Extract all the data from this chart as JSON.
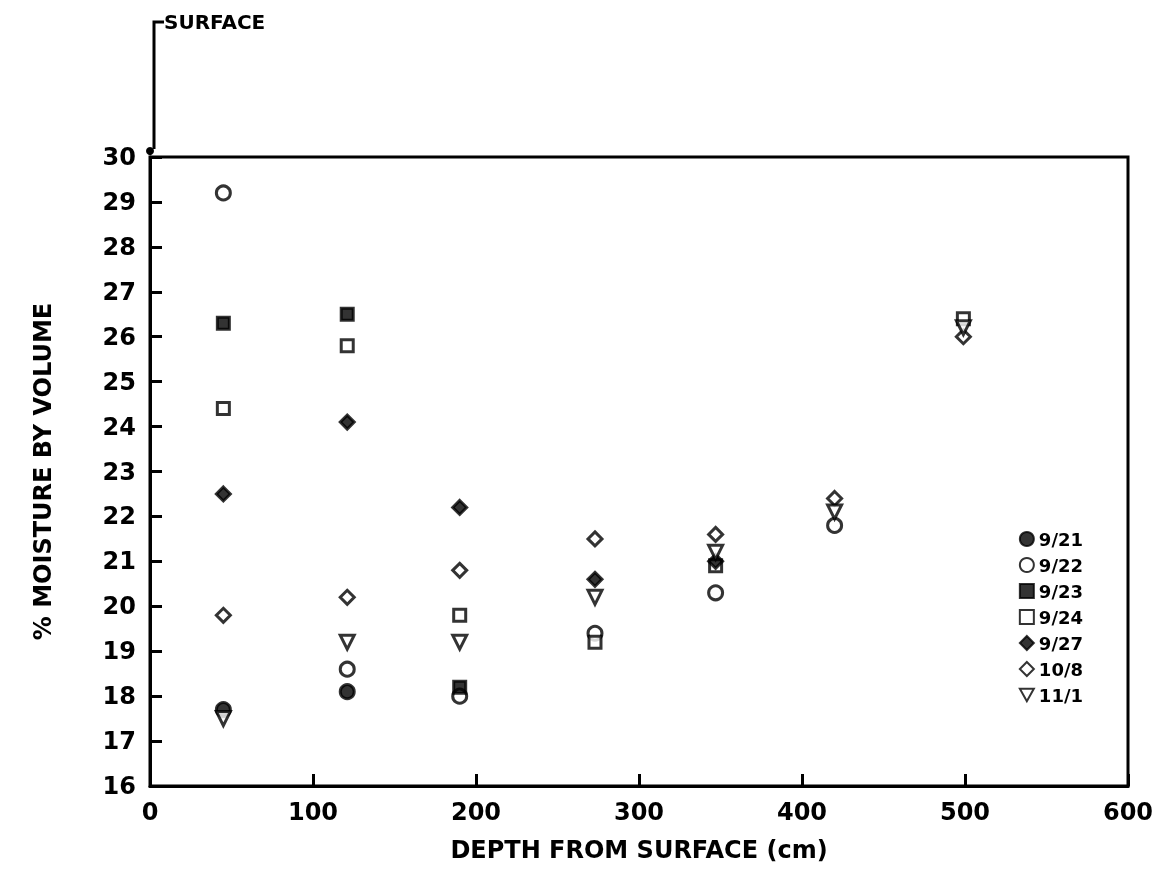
{
  "chart_data": {
    "type": "scatter",
    "xlabel": "DEPTH FROM SURFACE (cm)",
    "ylabel": "% MOISTURE BY VOLUME",
    "x": [
      45,
      121,
      190,
      273,
      347,
      420,
      499
    ],
    "series": [
      {
        "name": "9/21",
        "marker": "circle",
        "color": "#000000",
        "values": [
          17.7,
          18.1,
          null,
          null,
          null,
          null,
          null
        ]
      },
      {
        "name": "9/22",
        "marker": "circle",
        "color": "#ffffff",
        "values": [
          29.2,
          18.6,
          18.0,
          19.4,
          20.3,
          21.8,
          null
        ]
      },
      {
        "name": "9/23",
        "marker": "square",
        "color": "#000000",
        "values": [
          26.3,
          26.5,
          18.2,
          null,
          null,
          null,
          null
        ]
      },
      {
        "name": "9/24",
        "marker": "square",
        "color": "#ffffff",
        "values": [
          24.4,
          25.8,
          19.8,
          19.2,
          20.9,
          null,
          26.4
        ]
      },
      {
        "name": "9/27",
        "marker": "diamond",
        "color": "#000000",
        "values": [
          22.5,
          24.1,
          22.2,
          20.6,
          21.0,
          null,
          null
        ]
      },
      {
        "name": "10/8",
        "marker": "diamond",
        "color": "#ffffff",
        "values": [
          19.8,
          20.2,
          20.8,
          21.5,
          21.6,
          22.4,
          26.0
        ]
      },
      {
        "name": "11/1",
        "marker": "triangle",
        "color": "#ffffff",
        "values": [
          17.5,
          19.2,
          19.2,
          20.2,
          21.2,
          22.1,
          26.2
        ]
      }
    ],
    "xlim": [
      0,
      600
    ],
    "xticks": [
      0,
      100,
      200,
      300,
      400,
      500,
      600
    ],
    "ylim": [
      16,
      30
    ],
    "yticks": [
      16,
      17,
      18,
      19,
      20,
      21,
      22,
      23,
      24,
      25,
      26,
      27,
      28,
      29,
      30
    ],
    "annotations": [
      "SURFACE"
    ],
    "grid": false,
    "legend": "right"
  }
}
